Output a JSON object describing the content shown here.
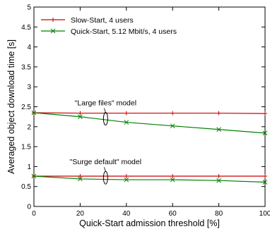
{
  "chart_data": {
    "type": "line",
    "xlabel": "Quick-Start admission threshold [%]",
    "ylabel": "Averaged object download time [s]",
    "xlim": [
      0,
      100
    ],
    "ylim": [
      0,
      5
    ],
    "x_ticks": [
      "0",
      "20",
      "40",
      "60",
      "80",
      "100"
    ],
    "y_ticks": [
      "0",
      "0.5",
      "1",
      "1.5",
      "2",
      "2.5",
      "3",
      "3.5",
      "4",
      "4.5",
      "5"
    ],
    "grid": false,
    "legend_position": "top-left",
    "legend": [
      {
        "label": "Slow-Start, 4 users",
        "color": "#cc0000",
        "marker": "plus"
      },
      {
        "label": "Quick-Start, 5.12 Mbit/s, 4 users",
        "color": "#008000",
        "marker": "x"
      }
    ],
    "series": [
      {
        "group": "large-files",
        "style": "slow-start",
        "color": "#cc0000",
        "marker": "plus",
        "x": [
          0,
          20,
          40,
          60,
          80,
          100
        ],
        "y": [
          2.35,
          2.34,
          2.34,
          2.34,
          2.34,
          2.33
        ]
      },
      {
        "group": "large-files",
        "style": "quick-start",
        "color": "#008000",
        "marker": "x",
        "x": [
          0,
          20,
          40,
          60,
          80,
          100
        ],
        "y": [
          2.35,
          2.25,
          2.11,
          2.02,
          1.93,
          1.84
        ]
      },
      {
        "group": "surge-default",
        "style": "slow-start",
        "color": "#cc0000",
        "marker": "plus",
        "x": [
          0,
          20,
          40,
          60,
          80,
          100
        ],
        "y": [
          0.76,
          0.76,
          0.76,
          0.76,
          0.76,
          0.76
        ]
      },
      {
        "group": "surge-default",
        "style": "quick-start",
        "color": "#008000",
        "marker": "x",
        "x": [
          0,
          20,
          40,
          60,
          80,
          100
        ],
        "y": [
          0.76,
          0.69,
          0.67,
          0.67,
          0.65,
          0.61
        ]
      }
    ],
    "annotations": [
      {
        "text": "\"Large files\" model",
        "x": 31,
        "y": 2.2
      },
      {
        "text": "\"Surge default\" model",
        "x": 31,
        "y": 0.72
      }
    ]
  }
}
